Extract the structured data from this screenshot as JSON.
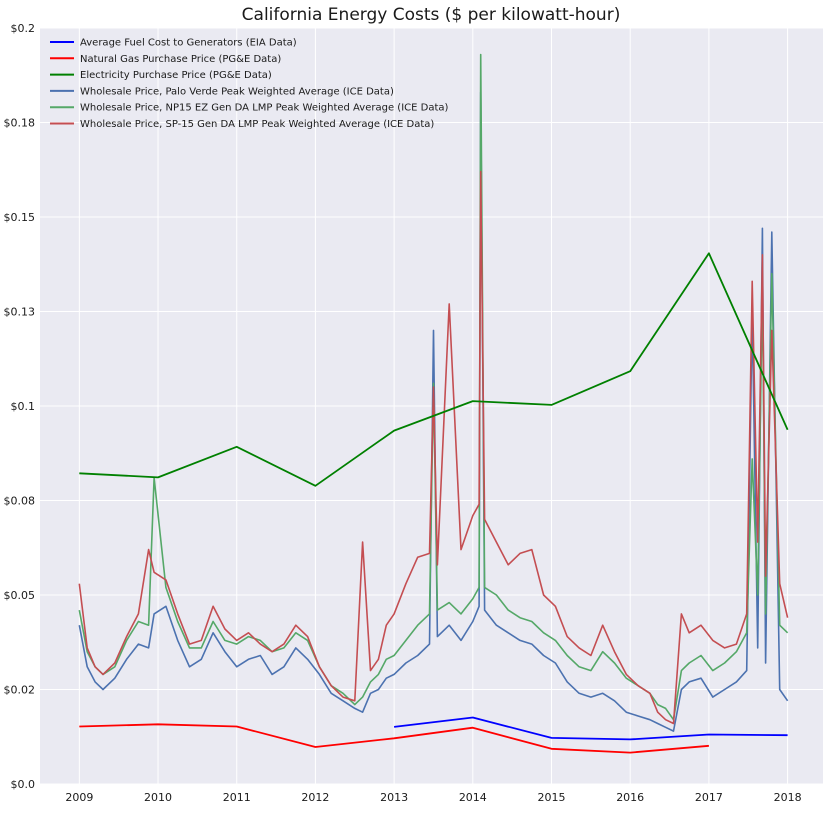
{
  "chart_data": {
    "type": "line",
    "title": "California Energy Costs ($ per kilowatt-hour)",
    "xlabel": "",
    "ylabel": "",
    "xlim": [
      2008.5,
      2018.45
    ],
    "ylim": [
      0,
      0.2
    ],
    "x_ticks": [
      2009,
      2010,
      2011,
      2012,
      2013,
      2014,
      2015,
      2016,
      2017,
      2018
    ],
    "x_tick_labels": [
      "2009",
      "2010",
      "2011",
      "2012",
      "2013",
      "2014",
      "2015",
      "2016",
      "2017",
      "2018"
    ],
    "y_ticks": [
      0,
      0.025,
      0.05,
      0.075,
      0.1,
      0.125,
      0.15,
      0.175,
      0.2
    ],
    "y_tick_labels": [
      "$0.0",
      "$0.02",
      "$0.05",
      "$0.08",
      "$0.1",
      "$0.13",
      "$0.15",
      "$0.18",
      "$0.2"
    ],
    "grid": true,
    "legend_position": "top-left",
    "series": [
      {
        "name": "Average Fuel Cost to Generators (EIA Data)",
        "color": "#0000ff",
        "x": [
          2013,
          2014,
          2015,
          2016,
          2017,
          2018
        ],
        "y": [
          0.0151,
          0.0176,
          0.0122,
          0.0118,
          0.0131,
          0.0129
        ]
      },
      {
        "name": "Natural Gas Purchase Price (PG&E Data)",
        "color": "#ff0000",
        "x": [
          2009,
          2010,
          2011,
          2012,
          2013,
          2014,
          2015,
          2016,
          2017
        ],
        "y": [
          0.0152,
          0.0158,
          0.0152,
          0.0098,
          0.0121,
          0.0149,
          0.0093,
          0.0083,
          0.0101
        ]
      },
      {
        "name": "Electricity Purchase Price (PG&E Data)",
        "color": "#008000",
        "x": [
          2009,
          2010,
          2011,
          2012,
          2013,
          2014,
          2015,
          2016,
          2017,
          2018
        ],
        "y": [
          0.0822,
          0.0811,
          0.0892,
          0.0789,
          0.0935,
          0.1013,
          0.1003,
          0.1092,
          0.1404,
          0.0937
        ]
      },
      {
        "name": "Wholesale Price, Palo Verde Peak Weighted Average (ICE Data)",
        "color": "#4c72b0",
        "x": [
          2009.0,
          2009.1,
          2009.2,
          2009.3,
          2009.45,
          2009.6,
          2009.75,
          2009.88,
          2009.95,
          2010.1,
          2010.25,
          2010.4,
          2010.55,
          2010.7,
          2010.85,
          2011.0,
          2011.15,
          2011.3,
          2011.45,
          2011.6,
          2011.75,
          2011.9,
          2012.05,
          2012.2,
          2012.35,
          2012.5,
          2012.6,
          2012.7,
          2012.8,
          2012.9,
          2013.0,
          2013.15,
          2013.3,
          2013.45,
          2013.5,
          2013.55,
          2013.7,
          2013.85,
          2014.0,
          2014.08,
          2014.1,
          2014.15,
          2014.3,
          2014.45,
          2014.6,
          2014.75,
          2014.9,
          2015.05,
          2015.2,
          2015.35,
          2015.5,
          2015.65,
          2015.8,
          2015.95,
          2016.1,
          2016.25,
          2016.35,
          2016.45,
          2016.55,
          2016.65,
          2016.75,
          2016.9,
          2017.05,
          2017.2,
          2017.35,
          2017.48,
          2017.55,
          2017.62,
          2017.68,
          2017.72,
          2017.8,
          2017.9,
          2018.0
        ],
        "y": [
          0.042,
          0.031,
          0.027,
          0.025,
          0.028,
          0.033,
          0.037,
          0.036,
          0.045,
          0.047,
          0.038,
          0.031,
          0.033,
          0.04,
          0.035,
          0.031,
          0.033,
          0.034,
          0.029,
          0.031,
          0.036,
          0.033,
          0.029,
          0.024,
          0.022,
          0.02,
          0.019,
          0.024,
          0.025,
          0.028,
          0.029,
          0.032,
          0.034,
          0.037,
          0.12,
          0.039,
          0.042,
          0.038,
          0.043,
          0.047,
          0.183,
          0.046,
          0.042,
          0.04,
          0.038,
          0.037,
          0.034,
          0.032,
          0.027,
          0.024,
          0.023,
          0.024,
          0.022,
          0.019,
          0.018,
          0.017,
          0.016,
          0.015,
          0.014,
          0.025,
          0.027,
          0.028,
          0.023,
          0.025,
          0.027,
          0.03,
          0.125,
          0.036,
          0.147,
          0.032,
          0.146,
          0.025,
          0.022
        ]
      },
      {
        "name": "Wholesale Price, NP15 EZ Gen DA LMP Peak Weighted Average (ICE Data)",
        "color": "#55a868",
        "x": [
          2009.0,
          2009.1,
          2009.2,
          2009.3,
          2009.45,
          2009.6,
          2009.75,
          2009.88,
          2009.95,
          2010.1,
          2010.25,
          2010.4,
          2010.55,
          2010.7,
          2010.85,
          2011.0,
          2011.15,
          2011.3,
          2011.45,
          2011.6,
          2011.75,
          2011.9,
          2012.05,
          2012.2,
          2012.35,
          2012.5,
          2012.6,
          2012.7,
          2012.8,
          2012.9,
          2013.0,
          2013.15,
          2013.3,
          2013.45,
          2013.5,
          2013.55,
          2013.7,
          2013.85,
          2014.0,
          2014.08,
          2014.1,
          2014.15,
          2014.3,
          2014.45,
          2014.6,
          2014.75,
          2014.9,
          2015.05,
          2015.2,
          2015.35,
          2015.5,
          2015.65,
          2015.8,
          2015.95,
          2016.1,
          2016.25,
          2016.35,
          2016.45,
          2016.55,
          2016.65,
          2016.75,
          2016.9,
          2017.05,
          2017.2,
          2017.35,
          2017.48,
          2017.55,
          2017.62,
          2017.68,
          2017.72,
          2017.8,
          2017.9,
          2018.0
        ],
        "y": [
          0.046,
          0.035,
          0.031,
          0.029,
          0.031,
          0.038,
          0.043,
          0.042,
          0.081,
          0.052,
          0.043,
          0.036,
          0.036,
          0.043,
          0.038,
          0.037,
          0.039,
          0.038,
          0.035,
          0.036,
          0.04,
          0.038,
          0.031,
          0.026,
          0.024,
          0.021,
          0.023,
          0.027,
          0.029,
          0.033,
          0.034,
          0.038,
          0.042,
          0.045,
          0.106,
          0.046,
          0.048,
          0.045,
          0.049,
          0.052,
          0.193,
          0.052,
          0.05,
          0.046,
          0.044,
          0.043,
          0.04,
          0.038,
          0.034,
          0.031,
          0.03,
          0.035,
          0.032,
          0.028,
          0.026,
          0.024,
          0.021,
          0.02,
          0.017,
          0.03,
          0.032,
          0.034,
          0.03,
          0.032,
          0.035,
          0.04,
          0.086,
          0.05,
          0.132,
          0.045,
          0.135,
          0.042,
          0.04
        ]
      },
      {
        "name": "Wholesale Price, SP-15 Gen DA LMP Peak Weighted Average (ICE Data)",
        "color": "#c44e52",
        "x": [
          2009.0,
          2009.1,
          2009.2,
          2009.3,
          2009.45,
          2009.6,
          2009.75,
          2009.88,
          2009.95,
          2010.1,
          2010.25,
          2010.4,
          2010.55,
          2010.7,
          2010.85,
          2011.0,
          2011.15,
          2011.3,
          2011.45,
          2011.6,
          2011.75,
          2011.9,
          2012.05,
          2012.2,
          2012.35,
          2012.5,
          2012.6,
          2012.7,
          2012.8,
          2012.9,
          2013.0,
          2013.15,
          2013.3,
          2013.45,
          2013.5,
          2013.55,
          2013.7,
          2013.85,
          2014.0,
          2014.08,
          2014.1,
          2014.15,
          2014.3,
          2014.45,
          2014.6,
          2014.75,
          2014.9,
          2015.05,
          2015.2,
          2015.35,
          2015.5,
          2015.65,
          2015.8,
          2015.95,
          2016.1,
          2016.25,
          2016.35,
          2016.45,
          2016.55,
          2016.65,
          2016.75,
          2016.9,
          2017.05,
          2017.2,
          2017.35,
          2017.48,
          2017.55,
          2017.62,
          2017.68,
          2017.72,
          2017.8,
          2017.9,
          2018.0
        ],
        "y": [
          0.053,
          0.036,
          0.031,
          0.029,
          0.032,
          0.039,
          0.045,
          0.062,
          0.056,
          0.054,
          0.045,
          0.037,
          0.038,
          0.047,
          0.041,
          0.038,
          0.04,
          0.037,
          0.035,
          0.037,
          0.042,
          0.039,
          0.031,
          0.026,
          0.023,
          0.022,
          0.064,
          0.03,
          0.033,
          0.042,
          0.045,
          0.053,
          0.06,
          0.061,
          0.105,
          0.058,
          0.127,
          0.062,
          0.071,
          0.074,
          0.162,
          0.07,
          0.064,
          0.058,
          0.061,
          0.062,
          0.05,
          0.047,
          0.039,
          0.036,
          0.034,
          0.042,
          0.035,
          0.029,
          0.026,
          0.024,
          0.019,
          0.017,
          0.016,
          0.045,
          0.04,
          0.042,
          0.038,
          0.036,
          0.037,
          0.045,
          0.133,
          0.064,
          0.14,
          0.055,
          0.12,
          0.053,
          0.044
        ]
      }
    ]
  }
}
